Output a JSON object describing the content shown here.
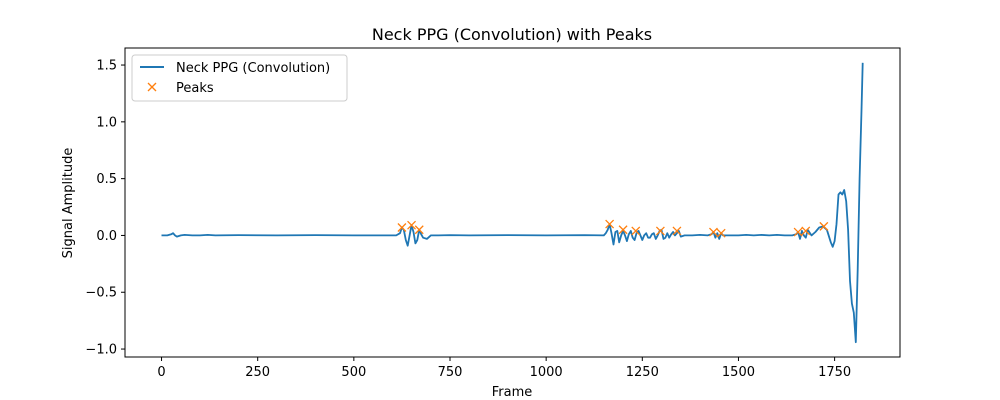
{
  "chart_data": {
    "type": "line",
    "title": "Neck PPG (Convolution) with Peaks",
    "xlabel": "Frame",
    "ylabel": "Signal Amplitude",
    "xlim": [
      -95,
      1920
    ],
    "ylim": [
      -1.07,
      1.65
    ],
    "xticks": [
      0,
      250,
      500,
      750,
      1000,
      1250,
      1500,
      1750
    ],
    "yticks": [
      -1.0,
      -0.5,
      0.0,
      0.5,
      1.0,
      1.5
    ],
    "ytick_labels": [
      "−1.0",
      "−0.5",
      "0.0",
      "0.5",
      "1.0",
      "1.5"
    ],
    "legend_position": "upper left",
    "series": [
      {
        "name": "Neck PPG (Convolution)",
        "color": "#1f77b4",
        "marker": "line",
        "x": [
          0,
          15,
          25,
          30,
          35,
          40,
          50,
          60,
          80,
          100,
          120,
          140,
          200,
          300,
          400,
          500,
          600,
          610,
          620,
          625,
          630,
          635,
          640,
          645,
          650,
          655,
          660,
          665,
          670,
          675,
          680,
          690,
          700,
          720,
          750,
          800,
          900,
          1000,
          1100,
          1150,
          1155,
          1160,
          1165,
          1170,
          1175,
          1180,
          1185,
          1190,
          1195,
          1200,
          1205,
          1210,
          1215,
          1220,
          1225,
          1230,
          1235,
          1240,
          1245,
          1250,
          1255,
          1260,
          1265,
          1270,
          1275,
          1280,
          1285,
          1290,
          1295,
          1300,
          1305,
          1310,
          1315,
          1320,
          1325,
          1330,
          1335,
          1340,
          1345,
          1350,
          1360,
          1380,
          1400,
          1420,
          1430,
          1435,
          1440,
          1445,
          1450,
          1455,
          1460,
          1470,
          1480,
          1500,
          1520,
          1540,
          1560,
          1580,
          1600,
          1620,
          1640,
          1650,
          1655,
          1660,
          1665,
          1670,
          1675,
          1680,
          1690,
          1700,
          1710,
          1720,
          1730,
          1740,
          1745,
          1750,
          1755,
          1760,
          1765,
          1770,
          1775,
          1780,
          1785,
          1790,
          1795,
          1800,
          1805,
          1810,
          1815,
          1820,
          1823
        ],
        "y": [
          0.0,
          0.0,
          0.01,
          0.02,
          0.0,
          -0.01,
          0.0,
          0.005,
          0.0,
          0.0,
          0.005,
          0.0,
          0.003,
          0.0,
          0.003,
          0.0,
          0.0,
          0.0,
          0.02,
          0.07,
          0.05,
          -0.04,
          -0.09,
          0.0,
          0.09,
          0.03,
          -0.07,
          -0.04,
          0.05,
          0.01,
          -0.02,
          -0.03,
          0.0,
          0.0,
          0.003,
          0.0,
          0.003,
          0.0,
          0.003,
          0.0,
          0.02,
          0.05,
          0.1,
          0.02,
          -0.08,
          0.03,
          0.04,
          -0.06,
          0.0,
          0.04,
          0.0,
          -0.05,
          0.01,
          0.04,
          -0.02,
          -0.04,
          0.02,
          0.04,
          0.0,
          -0.04,
          0.0,
          0.02,
          -0.02,
          -0.02,
          0.01,
          0.02,
          -0.03,
          0.0,
          0.04,
          0.05,
          -0.03,
          -0.02,
          0.02,
          -0.02,
          0.01,
          0.03,
          0.0,
          0.02,
          0.04,
          -0.01,
          0.0,
          0.0,
          0.005,
          0.0,
          0.01,
          0.03,
          -0.02,
          0.02,
          -0.03,
          0.02,
          0.0,
          0.0,
          0.0,
          0.0,
          0.005,
          0.0,
          0.005,
          0.0,
          0.005,
          0.0,
          0.0,
          0.01,
          0.03,
          -0.03,
          0.04,
          0.0,
          -0.02,
          0.05,
          0.0,
          0.03,
          0.07,
          0.08,
          0.05,
          -0.06,
          -0.1,
          -0.05,
          0.1,
          0.36,
          0.38,
          0.36,
          0.4,
          0.3,
          0.05,
          -0.4,
          -0.6,
          -0.68,
          -0.94,
          -0.3,
          0.5,
          1.1,
          1.52
        ]
      },
      {
        "name": "Peaks",
        "color": "#ff7f0e",
        "marker": "x",
        "x": [
          625,
          650,
          670,
          1165,
          1200,
          1233,
          1297,
          1340,
          1435,
          1455,
          1655,
          1675,
          1722
        ],
        "y": [
          0.07,
          0.09,
          0.05,
          0.1,
          0.05,
          0.04,
          0.04,
          0.04,
          0.03,
          0.02,
          0.03,
          0.04,
          0.08
        ]
      }
    ]
  }
}
